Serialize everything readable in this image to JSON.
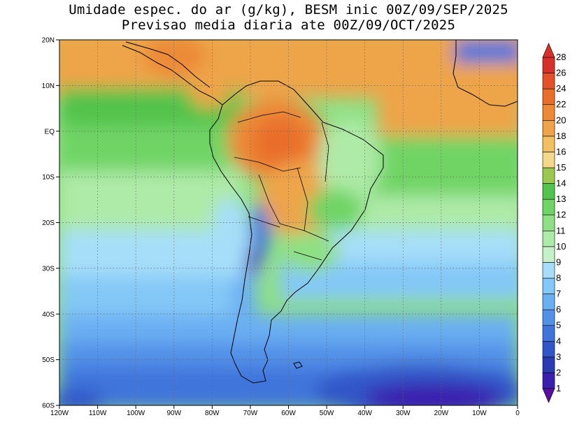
{
  "title": {
    "line1": "Umidade espec. do ar (g/kg), BESM inic 00Z/09/SEP/2025",
    "line2": "Previsao media diaria ate 00Z/09/OCT/2025"
  },
  "map": {
    "lon_range": [
      -120,
      0
    ],
    "lat_range": [
      -60,
      20
    ],
    "x_ticks": [
      {
        "lon": -120,
        "label": "120W"
      },
      {
        "lon": -110,
        "label": "110W"
      },
      {
        "lon": -100,
        "label": "100W"
      },
      {
        "lon": -90,
        "label": "90W"
      },
      {
        "lon": -80,
        "label": "80W"
      },
      {
        "lon": -70,
        "label": "70W"
      },
      {
        "lon": -60,
        "label": "60W"
      },
      {
        "lon": -50,
        "label": "50W"
      },
      {
        "lon": -40,
        "label": "40W"
      },
      {
        "lon": -30,
        "label": "30W"
      },
      {
        "lon": -20,
        "label": "20W"
      },
      {
        "lon": -10,
        "label": "10W"
      },
      {
        "lon": 0,
        "label": "0"
      }
    ],
    "y_ticks": [
      {
        "lat": 20,
        "label": "20N"
      },
      {
        "lat": 10,
        "label": "10N"
      },
      {
        "lat": 0,
        "label": "EQ"
      },
      {
        "lat": -10,
        "label": "10S"
      },
      {
        "lat": -20,
        "label": "20S"
      },
      {
        "lat": -30,
        "label": "30S"
      },
      {
        "lat": -40,
        "label": "40S"
      },
      {
        "lat": -50,
        "label": "50S"
      },
      {
        "lat": -60,
        "label": "60S"
      }
    ],
    "grid": "dotted"
  },
  "colorbar": {
    "levels": [
      {
        "label": "1",
        "color": "#5a0fa3"
      },
      {
        "label": "2",
        "color": "#3b1fae"
      },
      {
        "label": "3",
        "color": "#2a3bb5"
      },
      {
        "label": "4",
        "color": "#3156c8"
      },
      {
        "label": "5",
        "color": "#3f74db"
      },
      {
        "label": "6",
        "color": "#5391e8"
      },
      {
        "label": "7",
        "color": "#6aaff2"
      },
      {
        "label": "8",
        "color": "#84c8f7"
      },
      {
        "label": "9",
        "color": "#a6def9"
      },
      {
        "label": "10",
        "color": "#c6f1c8"
      },
      {
        "label": "11",
        "color": "#aeeaa8"
      },
      {
        "label": "12",
        "color": "#8fe084"
      },
      {
        "label": "13",
        "color": "#6fd465"
      },
      {
        "label": "14",
        "color": "#52c34c"
      },
      {
        "label": "15",
        "color": "#9bc850"
      },
      {
        "label": "16",
        "color": "#f5d88b"
      },
      {
        "label": "18",
        "color": "#f2c063"
      },
      {
        "label": "20",
        "color": "#eea44a"
      },
      {
        "label": "22",
        "color": "#ec8a38"
      },
      {
        "label": "24",
        "color": "#e96e2a"
      },
      {
        "label": "26",
        "color": "#e4502a"
      },
      {
        "label": "28",
        "color": "#d8302a"
      }
    ]
  }
}
